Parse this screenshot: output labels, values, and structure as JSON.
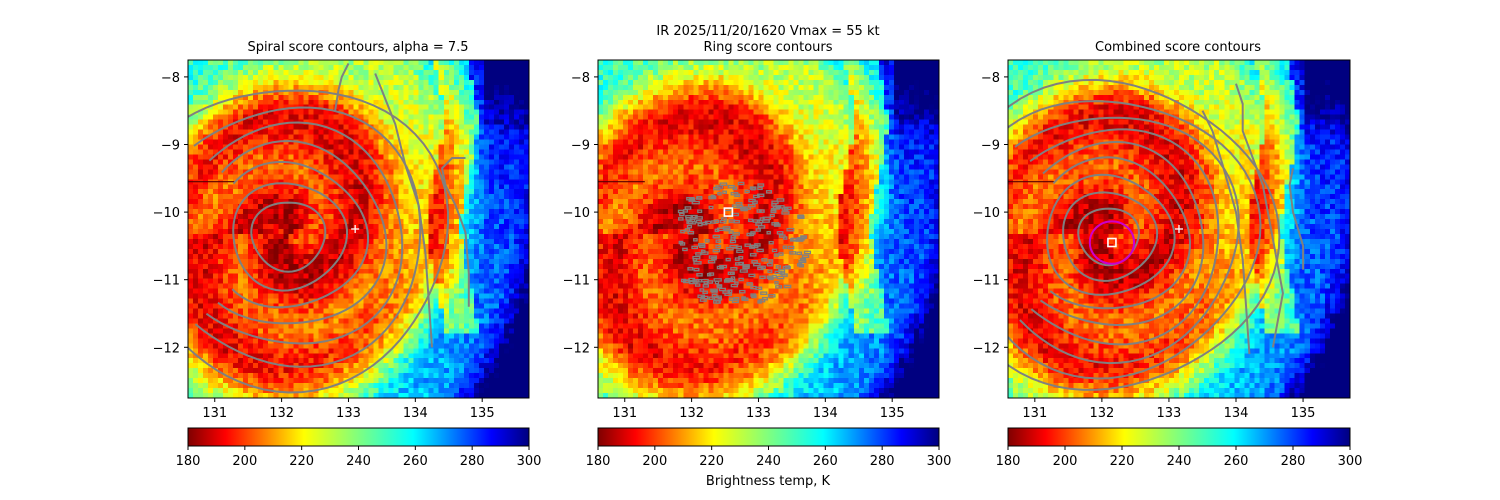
{
  "figure": {
    "suptitle_line1": "IR  2025/11/20/1620    Vmax = 55 kt",
    "colorbar_label": "Brightness temp, K",
    "colormap": "jet_r",
    "contour_color": "#808080",
    "marker_color": "#ffffff",
    "ring_color": "#cc00cc",
    "background_color": "#ffffff"
  },
  "chart_data": [
    {
      "type": "heatmap",
      "panel": "spiral",
      "title": "Spiral score contours, alpha =  7.5",
      "xlim": [
        130.6,
        135.7
      ],
      "ylim": [
        -12.75,
        -7.75
      ],
      "x_ticks": [
        131,
        132,
        133,
        134,
        135
      ],
      "y_ticks": [
        -8,
        -9,
        -10,
        -11,
        -12
      ],
      "colorbar": {
        "vmin": 180,
        "vmax": 300,
        "ticks": [
          180,
          200,
          220,
          240,
          260,
          280,
          300
        ]
      },
      "center": {
        "lon": 132.1,
        "lat": -10.35
      },
      "marker_plus": {
        "lon": 133.1,
        "lat": -10.25
      },
      "contour_radii_deg": [
        0.55,
        0.85,
        1.15,
        1.45,
        1.75,
        2.05,
        2.4
      ],
      "outer_bands": [
        [
          [
            134.25,
            -12.0
          ],
          [
            134.2,
            -11.3
          ],
          [
            134.15,
            -10.6
          ],
          [
            134.05,
            -9.9
          ],
          [
            133.85,
            -9.3
          ],
          [
            133.7,
            -8.7
          ],
          [
            133.5,
            -8.2
          ],
          [
            133.4,
            -7.95
          ]
        ],
        [
          [
            134.8,
            -11.4
          ],
          [
            134.8,
            -10.9
          ],
          [
            134.75,
            -10.3
          ],
          [
            134.6,
            -9.9
          ],
          [
            134.45,
            -9.6
          ],
          [
            134.4,
            -9.35
          ],
          [
            134.55,
            -9.2
          ],
          [
            134.75,
            -9.2
          ]
        ],
        [
          [
            133.0,
            -7.8
          ],
          [
            132.9,
            -8.0
          ],
          [
            132.85,
            -8.2
          ],
          [
            132.8,
            -8.5
          ]
        ]
      ]
    },
    {
      "type": "heatmap",
      "panel": "ring",
      "title": "Ring score contours",
      "xlim": [
        130.6,
        135.7
      ],
      "ylim": [
        -12.75,
        -7.75
      ],
      "x_ticks": [
        131,
        132,
        133,
        134,
        135
      ],
      "y_ticks": [
        -8,
        -9,
        -10,
        -11,
        -12
      ],
      "colorbar": {
        "vmin": 180,
        "vmax": 300,
        "ticks": [
          180,
          200,
          220,
          240,
          260,
          280,
          300
        ]
      },
      "center": {
        "lon": 132.1,
        "lat": -10.35
      },
      "marker_square": {
        "lon": 132.55,
        "lat": -10.0
      }
    },
    {
      "type": "heatmap",
      "panel": "combined",
      "title": "Combined score contours",
      "xlim": [
        130.6,
        135.7
      ],
      "ylim": [
        -12.75,
        -7.75
      ],
      "x_ticks": [
        131,
        132,
        133,
        134,
        135
      ],
      "y_ticks": [
        -8,
        -9,
        -10,
        -11,
        -12
      ],
      "colorbar": {
        "vmin": 180,
        "vmax": 300,
        "ticks": [
          180,
          200,
          220,
          240,
          260,
          280,
          300
        ]
      },
      "center": {
        "lon": 132.1,
        "lat": -10.35
      },
      "marker_plus": {
        "lon": 133.15,
        "lat": -10.25
      },
      "marker_square": {
        "lon": 132.15,
        "lat": -10.45
      },
      "ring": {
        "lon": 132.15,
        "lat": -10.45,
        "radius_deg": 0.33
      },
      "contour_radii_deg": [
        0.45,
        0.7,
        0.95,
        1.2,
        1.45,
        1.7,
        1.95,
        2.2,
        2.45
      ],
      "outer_bands": [
        [
          [
            134.2,
            -12.1
          ],
          [
            134.15,
            -11.4
          ],
          [
            134.1,
            -10.7
          ],
          [
            134.0,
            -10.0
          ],
          [
            133.8,
            -9.3
          ],
          [
            133.65,
            -8.8
          ],
          [
            133.5,
            -8.5
          ]
        ],
        [
          [
            134.55,
            -12.0
          ],
          [
            134.7,
            -11.2
          ],
          [
            134.55,
            -10.4
          ],
          [
            134.4,
            -9.6
          ],
          [
            134.25,
            -9.2
          ],
          [
            134.1,
            -8.8
          ],
          [
            134.1,
            -8.4
          ],
          [
            134.0,
            -8.1
          ]
        ],
        [
          [
            135.0,
            -10.85
          ],
          [
            135.0,
            -10.5
          ],
          [
            134.85,
            -10.0
          ],
          [
            134.8,
            -9.6
          ],
          [
            134.85,
            -9.35
          ]
        ]
      ]
    }
  ]
}
